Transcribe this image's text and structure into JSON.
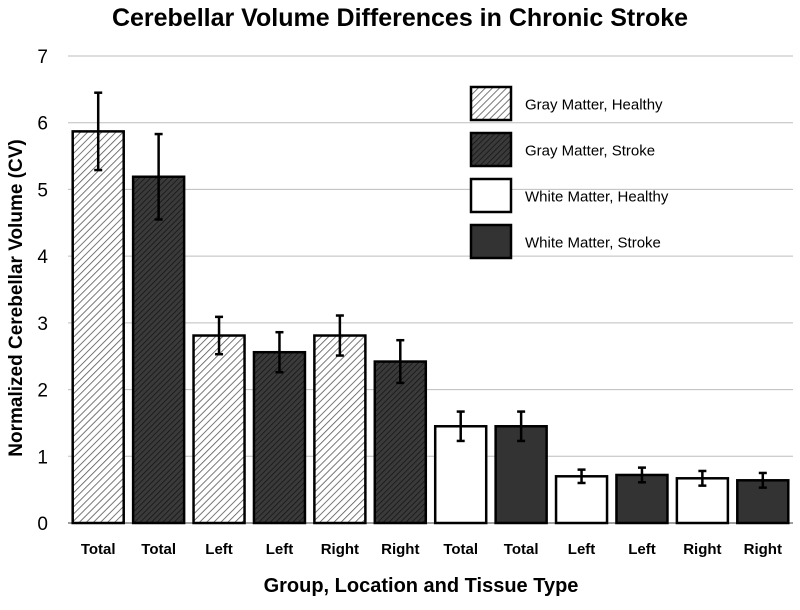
{
  "chart_data": {
    "type": "bar",
    "title": "Cerebellar Volume Differences in Chronic Stroke",
    "xlabel": "Group, Location and Tissue Type",
    "ylabel": "Normalized Cerebellar Volume (CV)",
    "ylim": [
      0,
      7
    ],
    "yticks": [
      "0",
      "1",
      "2",
      "3",
      "4",
      "5",
      "6",
      "7"
    ],
    "grid": true,
    "legend_position": "top-right",
    "categories": [
      "Total",
      "Total",
      "Left",
      "Left",
      "Right",
      "Right",
      "Total",
      "Total",
      "Left",
      "Left",
      "Right",
      "Right"
    ],
    "series_order": [
      0,
      1,
      0,
      1,
      0,
      1,
      2,
      3,
      2,
      3,
      2,
      3
    ],
    "values": [
      5.87,
      5.19,
      2.81,
      2.56,
      2.81,
      2.42,
      1.45,
      1.45,
      0.7,
      0.72,
      0.67,
      0.64
    ],
    "errors": [
      0.58,
      0.64,
      0.28,
      0.3,
      0.3,
      0.32,
      0.22,
      0.22,
      0.1,
      0.11,
      0.11,
      0.11
    ],
    "series": [
      {
        "name": "Gray Matter, Healthy",
        "pattern": "hatch-light",
        "fill": "#ffffff",
        "stroke_color": "#000000"
      },
      {
        "name": "Gray Matter, Stroke",
        "pattern": "hatch-dark",
        "fill": "#2f2f2f",
        "stroke_color": "#000000"
      },
      {
        "name": "White Matter, Healthy",
        "pattern": "solid",
        "fill": "#ffffff",
        "stroke_color": "#000000"
      },
      {
        "name": "White Matter, Stroke",
        "pattern": "solid",
        "fill": "#333333",
        "stroke_color": "#000000"
      }
    ]
  }
}
